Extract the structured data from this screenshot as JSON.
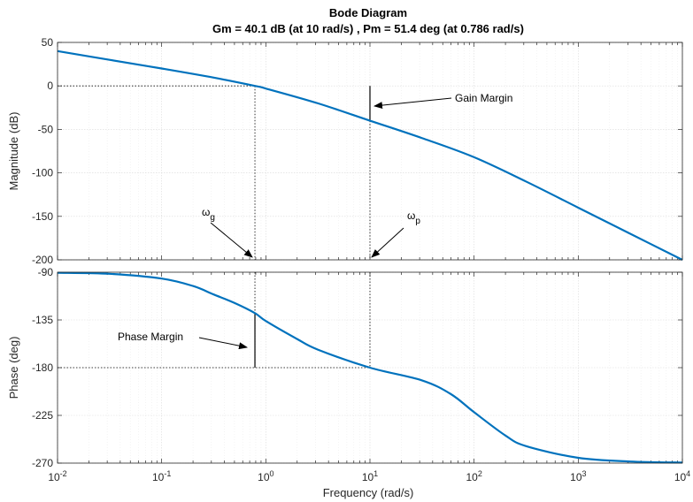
{
  "chart_data": {
    "type": "line",
    "title": "Bode Diagram",
    "subtitle": "Gm = 40.1 dB (at 10 rad/s) ,  Pm = 51.4 deg (at 0.786 rad/s)",
    "xlabel": "Frequency  (rad/s)",
    "xscale": "log",
    "xlim": [
      0.01,
      10000
    ],
    "x_tick_labels": [
      {
        "base": "10",
        "exp": "-2"
      },
      {
        "base": "10",
        "exp": "-1"
      },
      {
        "base": "10",
        "exp": "0"
      },
      {
        "base": "10",
        "exp": "1"
      },
      {
        "base": "10",
        "exp": "2"
      },
      {
        "base": "10",
        "exp": "3"
      },
      {
        "base": "10",
        "exp": "4"
      }
    ],
    "grid": true,
    "line_color": "#0072BD",
    "panels": [
      {
        "ylabel": "Magnitude (dB)",
        "ylim": [
          -200,
          50
        ],
        "yticks": [
          "50",
          "0",
          "-50",
          "-100",
          "-150",
          "-200"
        ],
        "series": [
          {
            "x": [
              0.01,
              0.0316,
              0.1,
              0.316,
              0.786,
              1,
              3.16,
              10,
              31.6,
              100,
              316,
              1000,
              3160,
              10000
            ],
            "y": [
              40,
              30,
              20,
              9.5,
              0,
              -3,
              -20,
              -40,
              -60,
              -82,
              -110,
              -140,
              -170,
              -200
            ]
          }
        ],
        "annotations": [
          {
            "text": "Gain Margin",
            "x": 10,
            "y_from": 0,
            "y_to": -40.1
          },
          {
            "text": "ωg",
            "symbol": "ω",
            "sub": "g",
            "x": 0.786
          },
          {
            "text": "ωp",
            "symbol": "ω",
            "sub": "p",
            "x": 10
          }
        ]
      },
      {
        "ylabel": "Phase (deg)",
        "ylim": [
          -270,
          -90
        ],
        "yticks": [
          "-90",
          "-135",
          "-180",
          "-225",
          "-270"
        ],
        "series": [
          {
            "x": [
              0.01,
              0.0316,
              0.1,
              0.2,
              0.316,
              0.5,
              0.786,
              1,
              2,
              3.16,
              10,
              31.6,
              60,
              100,
              200,
              316,
              1000,
              3160,
              10000
            ],
            "y": [
              -90.5,
              -91.5,
              -96,
              -103,
              -111,
              -119,
              -128.6,
              -136,
              -153,
              -163,
              -180,
              -192,
              -205,
              -222,
              -244,
              -254,
              -265,
              -268.5,
              -269.5
            ]
          }
        ],
        "annotations": [
          {
            "text": "Phase Margin",
            "x": 0.786,
            "y_from": -180,
            "y_to": -128.6
          }
        ]
      }
    ]
  }
}
